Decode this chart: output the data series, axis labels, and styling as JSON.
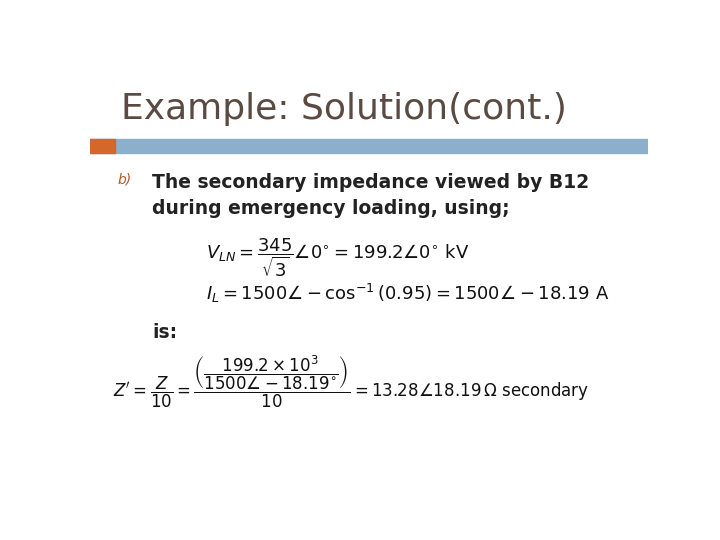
{
  "title": "Example: Solution(cont.)",
  "title_color": "#5a4a42",
  "title_fontsize": 26,
  "bg_color": "#ffffff",
  "bar_color_orange": "#d4672a",
  "bar_color_blue": "#8cb0cc",
  "orange_bar_width": 0.045,
  "label_b": "b)",
  "text_line1": "The secondary impedance viewed by B12",
  "text_line2": "during emergency loading, using;",
  "is_text": "is:",
  "text_color": "#222222",
  "math_color": "#111111",
  "label_b_color": "#b05a2a"
}
